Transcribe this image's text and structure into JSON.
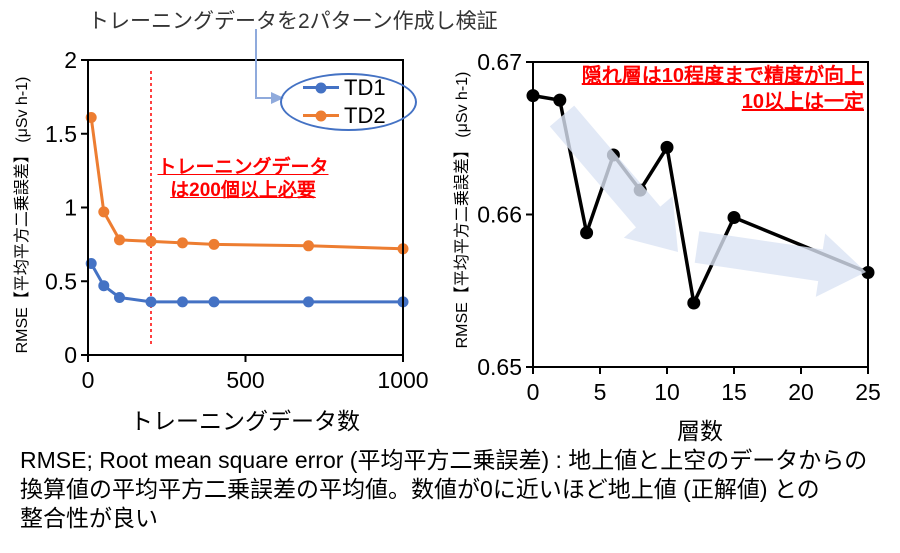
{
  "colors": {
    "td1_blue": "#4472C4",
    "td2_orange": "#ED7D31",
    "annotation_red": "#FF0000",
    "callout_arrow_blue": "#8FAADC",
    "trend_arrow_fill": "#DCE4F3",
    "axis_black": "#000000"
  },
  "annotations": {
    "top_callout": "トレーニングデータを2パターン作成し検証",
    "left_note": {
      "line1": "トレーニングデータ",
      "line2": "は200個以上必要"
    },
    "right_note": {
      "line1": "隠れ層は10程度まで精度が向上",
      "line2": "10以上は一定"
    }
  },
  "caption": {
    "line1": "RMSE; Root mean square error (平均平方二乗誤差) : 地上値と上空のデータからの",
    "line2": "換算値の平均平方二乗誤差の平均値。数値が0に近いほど地上値 (正解値) との",
    "line3": "整合性が良い"
  },
  "chart_data": [
    {
      "type": "line",
      "title": "",
      "xlabel": "トレーニングデータ数",
      "ylabel": "RMSE【平均平方二乗誤差】 (μSv h-1)",
      "x": [
        10,
        50,
        100,
        200,
        300,
        400,
        700,
        1000
      ],
      "series": [
        {
          "name": "TD1",
          "color": "#4472C4",
          "values": [
            0.62,
            0.47,
            0.39,
            0.36,
            0.36,
            0.36,
            0.36,
            0.36
          ]
        },
        {
          "name": "TD2",
          "color": "#ED7D31",
          "values": [
            1.61,
            0.97,
            0.78,
            0.77,
            0.76,
            0.75,
            0.74,
            0.72
          ]
        }
      ],
      "xlim": [
        0,
        1000
      ],
      "ylim": [
        0,
        2
      ],
      "xticks": [
        0,
        500,
        1000
      ],
      "yticks": [
        0,
        0.5,
        1,
        1.5,
        2
      ],
      "reference_line": {
        "x": 200,
        "style": "dashed",
        "color": "#FF0000"
      },
      "legend_position": "top-right",
      "grid": false
    },
    {
      "type": "line",
      "title": "",
      "xlabel": "層数",
      "ylabel": "RMSE【平均平方二乗誤差】 (μSv h-1)",
      "x": [
        0,
        2,
        4,
        6,
        8,
        10,
        12,
        15,
        25
      ],
      "series": [
        {
          "name": "RMSE",
          "color": "#000000",
          "values": [
            0.6678,
            0.6675,
            0.6588,
            0.6639,
            0.6616,
            0.6644,
            0.6542,
            0.6598,
            0.6562
          ]
        }
      ],
      "xlim": [
        0,
        25
      ],
      "ylim": [
        0.65,
        0.67
      ],
      "xticks": [
        0,
        5,
        10,
        15,
        20,
        25
      ],
      "yticks": [
        0.65,
        0.66,
        0.67
      ],
      "grid": false
    }
  ]
}
